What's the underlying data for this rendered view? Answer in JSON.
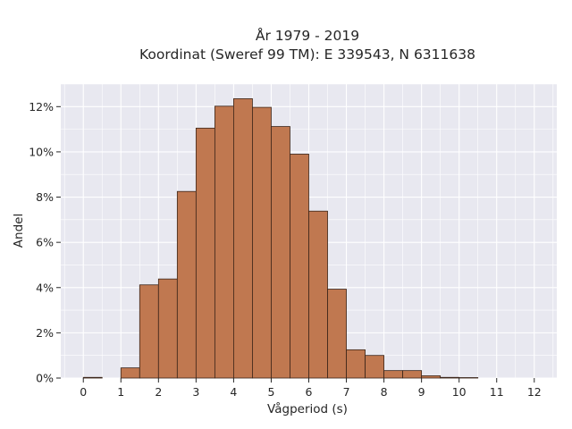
{
  "chart_data": {
    "type": "bar",
    "title_line1": "År 1979 - 2019",
    "title_line2": "Koordinat (Sweref 99 TM): E 339543, N 6311638",
    "xlabel": "Vågperiod (s)",
    "ylabel": "Andel",
    "bin_width": 0.5,
    "bin_starts": [
      0.0,
      0.5,
      1.0,
      1.5,
      2.0,
      2.5,
      3.0,
      3.5,
      4.0,
      4.5,
      5.0,
      5.5,
      6.0,
      6.5,
      7.0,
      7.5,
      8.0,
      8.5,
      9.0,
      9.5,
      10.0
    ],
    "values": [
      0.03,
      0.0,
      0.45,
      4.12,
      4.38,
      8.25,
      11.05,
      12.02,
      12.35,
      11.97,
      11.12,
      9.9,
      7.38,
      3.93,
      1.25,
      1.0,
      0.33,
      0.33,
      0.1,
      0.03,
      0.02
    ],
    "xlim": [
      -0.6,
      12.6
    ],
    "ylim": [
      0,
      13
    ],
    "x_ticks": [
      0,
      1,
      2,
      3,
      4,
      5,
      6,
      7,
      8,
      9,
      10,
      11,
      12
    ],
    "x_tick_labels": [
      "0",
      "1",
      "2",
      "3",
      "4",
      "5",
      "6",
      "7",
      "8",
      "9",
      "10",
      "11",
      "12"
    ],
    "y_ticks": [
      0,
      2,
      4,
      6,
      8,
      10,
      12
    ],
    "y_tick_labels": [
      "0%",
      "2%",
      "4%",
      "6%",
      "8%",
      "10%",
      "12%"
    ],
    "grid": true,
    "colors": {
      "bar_fill": "#c07850",
      "bar_edge": "#3a2418",
      "plot_background": "#e8e8f0",
      "grid": "#ffffff"
    }
  }
}
